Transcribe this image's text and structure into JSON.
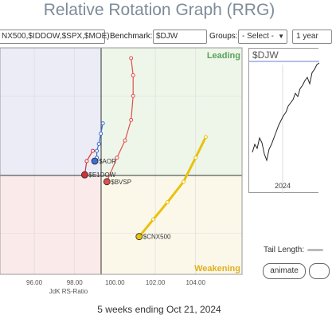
{
  "title": "Relative Rotation Graph (RRG)",
  "toolbar": {
    "symbols_value": "NX500,$IDDOW,$SPX,$MOE)",
    "benchmark_label": "Benchmark:",
    "benchmark_value": "$DJW",
    "groups_label": "Groups:",
    "groups_selected": "- Select -",
    "period_selected": "1 year"
  },
  "chart_data": {
    "type": "scatter",
    "xlabel": "JdK RS-Ratio",
    "x_ticks": [
      "96.00",
      "98.00",
      "100.00",
      "102.00",
      "104.00"
    ],
    "xlim": [
      94.3,
      106.3
    ],
    "ylim": [
      96.8,
      103.4
    ],
    "center": [
      100,
      100
    ],
    "quadrants": {
      "leading": "Leading",
      "weakening": "Weakening",
      "colors": {
        "leading": "#eef6ea",
        "weakening": "#fbf8ea",
        "lagging": "#fbeaea",
        "improving": "#ececf7"
      }
    },
    "series": [
      {
        "name": "$BVSP",
        "color": "#e0504a",
        "points": [
          [
            100.8,
            103.1
          ],
          [
            100.9,
            102.6
          ],
          [
            100.9,
            102.0
          ],
          [
            100.8,
            101.3
          ],
          [
            100.5,
            100.7
          ],
          [
            100.1,
            100.2
          ],
          [
            99.6,
            99.5
          ]
        ]
      },
      {
        "name": "$AOR",
        "color": "#3d6fd1",
        "points": [
          [
            99.4,
            101.2
          ],
          [
            99.3,
            100.9
          ],
          [
            99.2,
            100.6
          ],
          [
            99.1,
            100.4
          ],
          [
            99.1,
            100.2
          ],
          [
            99.0,
            100.1
          ]
        ]
      },
      {
        "name": "$E1DOW",
        "color": "#d83030",
        "points": [
          [
            98.9,
            100.4
          ],
          [
            98.6,
            100.1
          ],
          [
            98.5,
            99.7
          ]
        ]
      },
      {
        "name": "$CNX500",
        "color": "#e8c20c",
        "points": [
          [
            104.5,
            100.8
          ],
          [
            104.0,
            100.2
          ],
          [
            103.4,
            99.5
          ],
          [
            102.6,
            98.9
          ],
          [
            101.9,
            98.4
          ],
          [
            101.2,
            97.9
          ]
        ]
      }
    ],
    "bench_year": "2024"
  },
  "mini": {
    "label": "$DJW",
    "year": "2024"
  },
  "tail": {
    "label": "Tail Length:"
  },
  "buttons": {
    "animate": "animate"
  },
  "caption": "5 weeks ending Oct 21, 2024"
}
